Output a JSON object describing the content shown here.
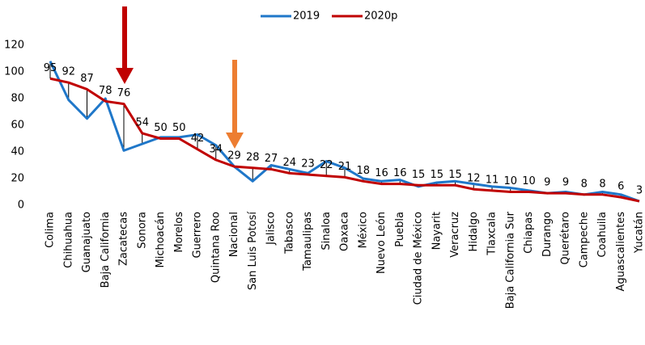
{
  "chart_data": {
    "type": "line",
    "categories": [
      "Colima",
      "Chihuahua",
      "Guanajuato",
      "Baja California",
      "Zacatecas",
      "Sonora",
      "Michoacán",
      "Morelos",
      "Guerrero",
      "Quintana Roo",
      "Nacional",
      "San Luis Potosí",
      "Jalisco",
      "Tabasco",
      "Tamaulipas",
      "Sinaloa",
      "Oaxaca",
      "México",
      "Nuevo León",
      "Puebla",
      "Ciudad de México",
      "Nayarit",
      "Veracruz",
      "Hidalgo",
      "Tlaxcala",
      "Baja California Sur",
      "Chiapas",
      "Durango",
      "Querétaro",
      "Campeche",
      "Coahuila",
      "Aguascalientes",
      "Yucatán"
    ],
    "series": [
      {
        "name": "2019",
        "color": "#1f77c9",
        "values": [
          108,
          79,
          65,
          80,
          41,
          46,
          51,
          51,
          53,
          45,
          29,
          18,
          30,
          27,
          24,
          33,
          28,
          20,
          18,
          19,
          14,
          17,
          18,
          16,
          14,
          13,
          11,
          9,
          10,
          8,
          10,
          8,
          3
        ]
      },
      {
        "name": "2020p",
        "color": "#c00000",
        "values": [
          95,
          92,
          87,
          78,
          76,
          54,
          50,
          50,
          42,
          34,
          29,
          28,
          27,
          24,
          23,
          22,
          21,
          18,
          16,
          16,
          15,
          15,
          15,
          12,
          11,
          10,
          10,
          9,
          9,
          8,
          8,
          6,
          3
        ]
      }
    ],
    "ylim": [
      0,
      120
    ],
    "yticks": [
      0,
      20,
      40,
      60,
      80,
      100,
      120
    ],
    "grid": false,
    "legend": "top"
  }
}
